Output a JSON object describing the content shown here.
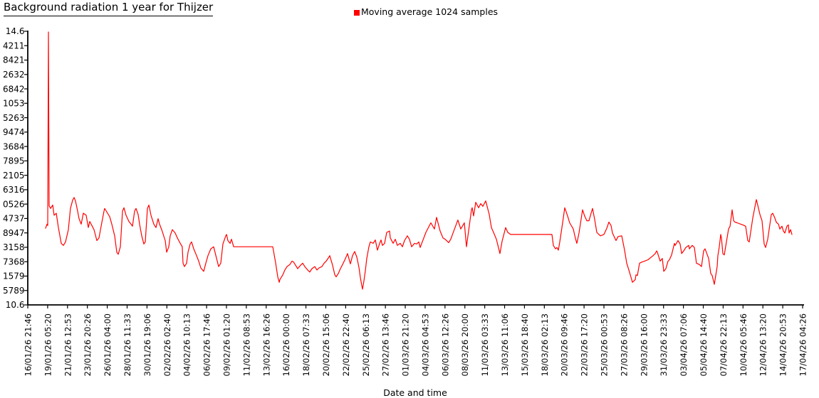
{
  "header": {
    "title": "Background radiation 1 year for Thijzer",
    "legend": {
      "marker_color": "#ff0000",
      "label": "Moving average 1024 samples"
    }
  },
  "chart_data": {
    "type": "line",
    "title": "Background radiation 1 year for Thijzer",
    "series_name": "Moving average 1024 samples",
    "line_color": "#ff0000",
    "axis_color": "#000000",
    "grid": false,
    "legend_position": "top-center",
    "xlabel": "Date and time",
    "ylabel": "",
    "y_range": [
      10.6,
      14.6
    ],
    "y_tick_labels": [
      "14.6",
      "4211",
      "8421",
      "2632",
      "6842",
      "1053",
      "5263",
      "9474",
      "3684",
      "7895",
      "2105",
      "6316",
      "0526",
      "4737",
      "8947",
      "3158",
      "7368",
      "1579",
      "5789",
      "10.6"
    ],
    "x_tick_labels": [
      "16/01/26 21:46",
      "19/01/26 05:20",
      "21/01/26 12:53",
      "23/01/26 20:26",
      "26/01/26 04:00",
      "28/01/26 11:33",
      "30/01/26 19:06",
      "02/02/26 02:40",
      "04/02/26 10:13",
      "06/02/26 17:46",
      "09/02/26 01:20",
      "11/02/26 08:53",
      "13/02/26 16:26",
      "16/02/26 00:00",
      "18/02/26 07:33",
      "20/02/26 15:06",
      "22/02/26 22:40",
      "25/02/26 06:13",
      "27/02/26 13:46",
      "01/03/26 21:20",
      "04/03/26 04:53",
      "06/03/26 12:26",
      "08/03/26 20:00",
      "11/03/26 03:33",
      "13/03/26 11:06",
      "15/03/26 18:40",
      "18/03/26 02:13",
      "20/03/26 09:46",
      "22/03/26 17:20",
      "25/03/26 00:53",
      "27/03/26 08:26",
      "29/03/26 16:00",
      "31/03/26 23:33",
      "03/04/26 07:06",
      "05/04/26 14:40",
      "07/04/26 22:13",
      "10/04/26 05:46",
      "12/04/26 13:20",
      "14/04/26 20:53",
      "17/04/26 04:26"
    ],
    "points": [
      [
        0.023,
        11.72
      ],
      [
        0.0248,
        11.78
      ],
      [
        0.0257,
        11.76
      ],
      [
        0.0267,
        14.59
      ],
      [
        0.0276,
        12.05
      ],
      [
        0.0294,
        12.01
      ],
      [
        0.0322,
        12.06
      ],
      [
        0.034,
        11.91
      ],
      [
        0.0368,
        11.94
      ],
      [
        0.0395,
        11.73
      ],
      [
        0.0432,
        11.5
      ],
      [
        0.046,
        11.47
      ],
      [
        0.0487,
        11.52
      ],
      [
        0.0524,
        11.7
      ],
      [
        0.0551,
        12.01
      ],
      [
        0.0579,
        12.13
      ],
      [
        0.0597,
        12.17
      ],
      [
        0.0616,
        12.12
      ],
      [
        0.0643,
        11.97
      ],
      [
        0.0662,
        11.86
      ],
      [
        0.0689,
        11.78
      ],
      [
        0.0717,
        11.94
      ],
      [
        0.0754,
        11.91
      ],
      [
        0.0781,
        11.73
      ],
      [
        0.08,
        11.82
      ],
      [
        0.0827,
        11.76
      ],
      [
        0.0855,
        11.7
      ],
      [
        0.0892,
        11.54
      ],
      [
        0.0919,
        11.58
      ],
      [
        0.0947,
        11.75
      ],
      [
        0.0983,
        11.97
      ],
      [
        0.0993,
        12.01
      ],
      [
        0.1029,
        11.94
      ],
      [
        0.1057,
        11.89
      ],
      [
        0.1085,
        11.78
      ],
      [
        0.1121,
        11.61
      ],
      [
        0.1149,
        11.37
      ],
      [
        0.1167,
        11.34
      ],
      [
        0.1195,
        11.45
      ],
      [
        0.1222,
        11.97
      ],
      [
        0.1241,
        12.02
      ],
      [
        0.1268,
        11.91
      ],
      [
        0.1305,
        11.82
      ],
      [
        0.1333,
        11.78
      ],
      [
        0.1351,
        11.75
      ],
      [
        0.1379,
        11.97
      ],
      [
        0.1397,
        12.01
      ],
      [
        0.1425,
        11.92
      ],
      [
        0.1443,
        11.78
      ],
      [
        0.1471,
        11.61
      ],
      [
        0.1498,
        11.49
      ],
      [
        0.1517,
        11.52
      ],
      [
        0.1544,
        12.01
      ],
      [
        0.1563,
        12.06
      ],
      [
        0.159,
        11.91
      ],
      [
        0.1627,
        11.78
      ],
      [
        0.1654,
        11.73
      ],
      [
        0.1682,
        11.86
      ],
      [
        0.17,
        11.78
      ],
      [
        0.1728,
        11.7
      ],
      [
        0.1774,
        11.54
      ],
      [
        0.1792,
        11.37
      ],
      [
        0.182,
        11.45
      ],
      [
        0.1838,
        11.61
      ],
      [
        0.1866,
        11.7
      ],
      [
        0.1903,
        11.65
      ],
      [
        0.193,
        11.58
      ],
      [
        0.1958,
        11.52
      ],
      [
        0.1994,
        11.45
      ],
      [
        0.2004,
        11.21
      ],
      [
        0.2022,
        11.16
      ],
      [
        0.205,
        11.21
      ],
      [
        0.2068,
        11.37
      ],
      [
        0.2096,
        11.49
      ],
      [
        0.2114,
        11.52
      ],
      [
        0.2142,
        11.42
      ],
      [
        0.2178,
        11.32
      ],
      [
        0.2206,
        11.24
      ],
      [
        0.2233,
        11.14
      ],
      [
        0.227,
        11.09
      ],
      [
        0.2298,
        11.21
      ],
      [
        0.2325,
        11.32
      ],
      [
        0.2362,
        11.42
      ],
      [
        0.2399,
        11.45
      ],
      [
        0.2427,
        11.32
      ],
      [
        0.2463,
        11.16
      ],
      [
        0.2491,
        11.21
      ],
      [
        0.2518,
        11.49
      ],
      [
        0.2555,
        11.61
      ],
      [
        0.2565,
        11.63
      ],
      [
        0.2583,
        11.54
      ],
      [
        0.2611,
        11.5
      ],
      [
        0.2629,
        11.56
      ],
      [
        0.2657,
        11.45
      ],
      [
        0.3162,
        11.45
      ],
      [
        0.3199,
        11.21
      ],
      [
        0.3226,
        11.01
      ],
      [
        0.3245,
        10.93
      ],
      [
        0.3254,
        10.97
      ],
      [
        0.3291,
        11.04
      ],
      [
        0.3318,
        11.11
      ],
      [
        0.3346,
        11.16
      ],
      [
        0.3382,
        11.19
      ],
      [
        0.341,
        11.24
      ],
      [
        0.3428,
        11.23
      ],
      [
        0.3456,
        11.18
      ],
      [
        0.3483,
        11.13
      ],
      [
        0.352,
        11.18
      ],
      [
        0.3548,
        11.21
      ],
      [
        0.3575,
        11.16
      ],
      [
        0.3612,
        11.11
      ],
      [
        0.364,
        11.08
      ],
      [
        0.3667,
        11.13
      ],
      [
        0.3704,
        11.16
      ],
      [
        0.3732,
        11.11
      ],
      [
        0.3759,
        11.14
      ],
      [
        0.3796,
        11.16
      ],
      [
        0.3824,
        11.21
      ],
      [
        0.3851,
        11.24
      ],
      [
        0.3888,
        11.3
      ],
      [
        0.3897,
        11.32
      ],
      [
        0.3934,
        11.18
      ],
      [
        0.3962,
        11.04
      ],
      [
        0.398,
        11.01
      ],
      [
        0.4008,
        11.06
      ],
      [
        0.4035,
        11.13
      ],
      [
        0.4072,
        11.21
      ],
      [
        0.41,
        11.28
      ],
      [
        0.4127,
        11.35
      ],
      [
        0.4164,
        11.2
      ],
      [
        0.4191,
        11.32
      ],
      [
        0.4219,
        11.38
      ],
      [
        0.4246,
        11.3
      ],
      [
        0.4274,
        11.15
      ],
      [
        0.4292,
        11.0
      ],
      [
        0.4311,
        10.88
      ],
      [
        0.432,
        10.83
      ],
      [
        0.4338,
        10.95
      ],
      [
        0.4357,
        11.1
      ],
      [
        0.4375,
        11.28
      ],
      [
        0.4403,
        11.45
      ],
      [
        0.4421,
        11.52
      ],
      [
        0.4458,
        11.5
      ],
      [
        0.4485,
        11.55
      ],
      [
        0.4513,
        11.4
      ],
      [
        0.4541,
        11.5
      ],
      [
        0.4559,
        11.55
      ],
      [
        0.4577,
        11.47
      ],
      [
        0.4605,
        11.5
      ],
      [
        0.4632,
        11.66
      ],
      [
        0.4669,
        11.68
      ],
      [
        0.4678,
        11.58
      ],
      [
        0.4715,
        11.5
      ],
      [
        0.4743,
        11.56
      ],
      [
        0.477,
        11.47
      ],
      [
        0.4807,
        11.5
      ],
      [
        0.4835,
        11.45
      ],
      [
        0.4862,
        11.54
      ],
      [
        0.4899,
        11.61
      ],
      [
        0.4926,
        11.56
      ],
      [
        0.4954,
        11.45
      ],
      [
        0.4991,
        11.5
      ],
      [
        0.5018,
        11.49
      ],
      [
        0.5046,
        11.52
      ],
      [
        0.5064,
        11.44
      ],
      [
        0.5138,
        11.66
      ],
      [
        0.5202,
        11.8
      ],
      [
        0.5248,
        11.71
      ],
      [
        0.5276,
        11.88
      ],
      [
        0.5322,
        11.68
      ],
      [
        0.5358,
        11.58
      ],
      [
        0.5386,
        11.56
      ],
      [
        0.5432,
        11.51
      ],
      [
        0.5459,
        11.56
      ],
      [
        0.5551,
        11.84
      ],
      [
        0.5588,
        11.71
      ],
      [
        0.5634,
        11.8
      ],
      [
        0.5662,
        11.45
      ],
      [
        0.5726,
        11.99
      ],
      [
        0.5735,
        12.02
      ],
      [
        0.5754,
        11.9
      ],
      [
        0.5781,
        12.1
      ],
      [
        0.5818,
        12.02
      ],
      [
        0.5846,
        12.08
      ],
      [
        0.5873,
        12.04
      ],
      [
        0.591,
        12.12
      ],
      [
        0.5956,
        11.92
      ],
      [
        0.5983,
        11.73
      ],
      [
        0.6011,
        11.66
      ],
      [
        0.6048,
        11.56
      ],
      [
        0.6094,
        11.35
      ],
      [
        0.6121,
        11.53
      ],
      [
        0.6167,
        11.73
      ],
      [
        0.6195,
        11.66
      ],
      [
        0.6232,
        11.63
      ],
      [
        0.6765,
        11.63
      ],
      [
        0.6783,
        11.47
      ],
      [
        0.6811,
        11.42
      ],
      [
        0.6829,
        11.44
      ],
      [
        0.6847,
        11.4
      ],
      [
        0.6866,
        11.52
      ],
      [
        0.6903,
        11.8
      ],
      [
        0.693,
        12.02
      ],
      [
        0.6967,
        11.9
      ],
      [
        0.6994,
        11.8
      ],
      [
        0.704,
        11.71
      ],
      [
        0.7068,
        11.57
      ],
      [
        0.7086,
        11.5
      ],
      [
        0.7114,
        11.65
      ],
      [
        0.716,
        11.99
      ],
      [
        0.7187,
        11.9
      ],
      [
        0.7215,
        11.83
      ],
      [
        0.7243,
        11.83
      ],
      [
        0.727,
        11.94
      ],
      [
        0.7289,
        12.01
      ],
      [
        0.7316,
        11.85
      ],
      [
        0.7344,
        11.66
      ],
      [
        0.7371,
        11.63
      ],
      [
        0.739,
        11.61
      ],
      [
        0.7436,
        11.63
      ],
      [
        0.7472,
        11.72
      ],
      [
        0.75,
        11.81
      ],
      [
        0.7528,
        11.76
      ],
      [
        0.7546,
        11.65
      ],
      [
        0.7592,
        11.54
      ],
      [
        0.7619,
        11.6
      ],
      [
        0.7665,
        11.61
      ],
      [
        0.7702,
        11.4
      ],
      [
        0.773,
        11.21
      ],
      [
        0.7757,
        11.11
      ],
      [
        0.7794,
        10.97
      ],
      [
        0.7803,
        10.93
      ],
      [
        0.784,
        10.97
      ],
      [
        0.7849,
        11.04
      ],
      [
        0.7868,
        11.03
      ],
      [
        0.7895,
        11.21
      ],
      [
        0.7932,
        11.23
      ],
      [
        0.7959,
        11.24
      ],
      [
        0.8005,
        11.26
      ],
      [
        0.807,
        11.32
      ],
      [
        0.8097,
        11.35
      ],
      [
        0.8116,
        11.39
      ],
      [
        0.8125,
        11.37
      ],
      [
        0.8162,
        11.24
      ],
      [
        0.8189,
        11.28
      ],
      [
        0.8208,
        11.09
      ],
      [
        0.8235,
        11.13
      ],
      [
        0.8263,
        11.24
      ],
      [
        0.8281,
        11.26
      ],
      [
        0.8309,
        11.33
      ],
      [
        0.8346,
        11.5
      ],
      [
        0.8355,
        11.47
      ],
      [
        0.8392,
        11.54
      ],
      [
        0.8419,
        11.49
      ],
      [
        0.8438,
        11.35
      ],
      [
        0.8465,
        11.39
      ],
      [
        0.8493,
        11.44
      ],
      [
        0.853,
        11.47
      ],
      [
        0.8539,
        11.42
      ],
      [
        0.8575,
        11.47
      ],
      [
        0.8603,
        11.44
      ],
      [
        0.863,
        11.21
      ],
      [
        0.8667,
        11.19
      ],
      [
        0.8695,
        11.16
      ],
      [
        0.8722,
        11.39
      ],
      [
        0.8741,
        11.42
      ],
      [
        0.8787,
        11.28
      ],
      [
        0.8814,
        11.06
      ],
      [
        0.8833,
        11.03
      ],
      [
        0.886,
        10.9
      ],
      [
        0.8897,
        11.16
      ],
      [
        0.8906,
        11.32
      ],
      [
        0.8925,
        11.45
      ],
      [
        0.8943,
        11.63
      ],
      [
        0.8952,
        11.58
      ],
      [
        0.8971,
        11.35
      ],
      [
        0.8989,
        11.33
      ],
      [
        0.9017,
        11.52
      ],
      [
        0.9044,
        11.71
      ],
      [
        0.9063,
        11.75
      ],
      [
        0.909,
        11.99
      ],
      [
        0.9109,
        11.83
      ],
      [
        0.9127,
        11.81
      ],
      [
        0.9155,
        11.8
      ],
      [
        0.9201,
        11.78
      ],
      [
        0.9228,
        11.77
      ],
      [
        0.9265,
        11.75
      ],
      [
        0.9292,
        11.54
      ],
      [
        0.9311,
        11.52
      ],
      [
        0.9338,
        11.73
      ],
      [
        0.9357,
        11.87
      ],
      [
        0.9403,
        12.14
      ],
      [
        0.9412,
        12.1
      ],
      [
        0.9449,
        11.92
      ],
      [
        0.9476,
        11.83
      ],
      [
        0.9504,
        11.49
      ],
      [
        0.9522,
        11.44
      ],
      [
        0.955,
        11.56
      ],
      [
        0.9596,
        11.92
      ],
      [
        0.9614,
        11.94
      ],
      [
        0.9642,
        11.87
      ],
      [
        0.966,
        11.81
      ],
      [
        0.9688,
        11.78
      ],
      [
        0.9706,
        11.71
      ],
      [
        0.9733,
        11.75
      ],
      [
        0.9752,
        11.68
      ],
      [
        0.977,
        11.65
      ],
      [
        0.9798,
        11.75
      ],
      [
        0.9816,
        11.77
      ],
      [
        0.9825,
        11.65
      ],
      [
        0.9844,
        11.7
      ],
      [
        0.9862,
        11.63
      ]
    ]
  }
}
